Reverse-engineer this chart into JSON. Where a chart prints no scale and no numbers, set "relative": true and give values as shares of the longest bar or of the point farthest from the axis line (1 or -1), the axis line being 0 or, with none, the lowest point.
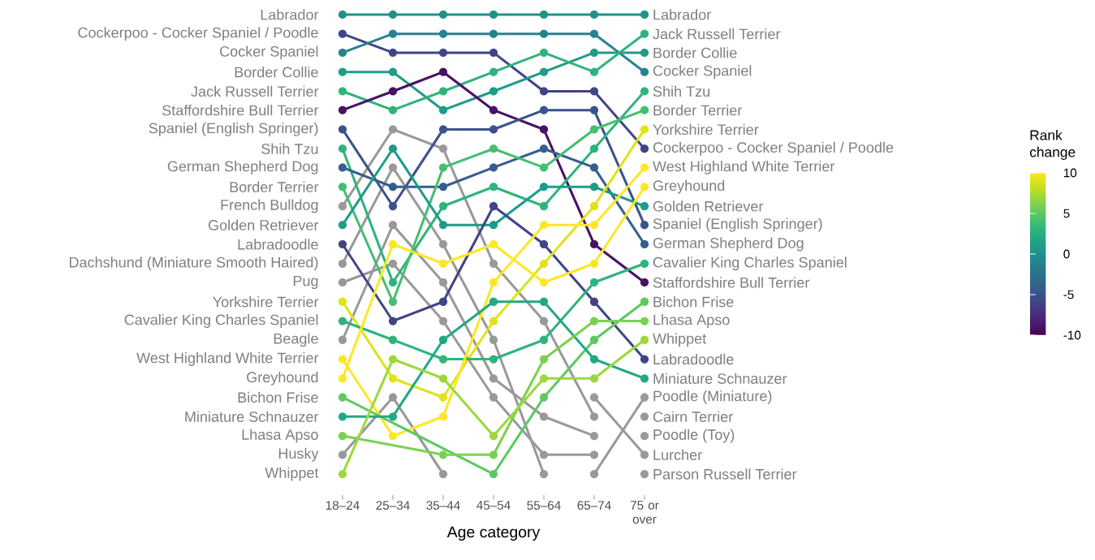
{
  "chart_data": {
    "type": "line",
    "relative": true,
    "xlabel": "Age category",
    "clabel": "Rank change",
    "marker": "circle",
    "line_style": "solid",
    "categories": [
      "18–24",
      "25–34",
      "35–44",
      "45–54",
      "55–64",
      "65–74",
      "75 or over"
    ],
    "clim": [
      -10,
      10
    ],
    "cticks": [
      -10,
      -5,
      0,
      5,
      10
    ],
    "series": [
      {
        "name": "French Bulldog",
        "color": "#999999",
        "values": [
          0.583,
          0.75,
          0.708,
          0.458,
          0.333,
          0.125,
          null
        ]
      },
      {
        "name": "Dachshund (Miniature Smooth Haired)",
        "color": "#999999",
        "values": [
          0.458,
          0.667,
          0.5,
          0.292,
          0,
          null,
          null
        ]
      },
      {
        "name": "Pug",
        "color": "#999999",
        "values": [
          0.417,
          0.458,
          0.333,
          0.167,
          0.042,
          0.042,
          null
        ]
      },
      {
        "name": "Beagle",
        "color": "#999999",
        "values": [
          0.292,
          0.542,
          0.417,
          0.208,
          0.125,
          0.083,
          null
        ]
      },
      {
        "name": "Husky",
        "color": "#999999",
        "values": [
          0.042,
          0.167,
          0,
          null,
          null,
          null,
          null
        ]
      },
      {
        "name": "Poodle (Miniature)",
        "color": "#999999",
        "values": [
          null,
          null,
          null,
          null,
          null,
          0,
          0.167
        ]
      },
      {
        "name": "Cairn Terrier",
        "color": "#999999",
        "values": [
          null,
          null,
          null,
          null,
          null,
          null,
          0.125
        ]
      },
      {
        "name": "Poodle (Toy)",
        "color": "#999999",
        "values": [
          null,
          null,
          null,
          null,
          null,
          null,
          0.083
        ]
      },
      {
        "name": "Lurcher",
        "color": "#999999",
        "values": [
          null,
          null,
          null,
          null,
          null,
          0.167,
          0.042
        ]
      },
      {
        "name": "Parson Russell Terrier",
        "color": "#999999",
        "values": [
          null,
          null,
          null,
          null,
          null,
          null,
          0
        ]
      },
      {
        "name": "Labrador",
        "color": "#21918c",
        "values": [
          1,
          1,
          1,
          1,
          1,
          1,
          1
        ]
      },
      {
        "name": "Cockerpoo - Cocker Spaniel / Poodle",
        "color": "#414487",
        "values": [
          0.958,
          0.917,
          0.917,
          0.917,
          0.833,
          0.833,
          0.708
        ]
      },
      {
        "name": "Cocker Spaniel",
        "color": "#25848e",
        "values": [
          0.917,
          0.958,
          0.958,
          0.958,
          0.958,
          0.958,
          0.875
        ]
      },
      {
        "name": "Border Collie",
        "color": "#1e9c89",
        "values": [
          0.875,
          0.875,
          0.792,
          0.833,
          0.875,
          0.917,
          0.917
        ]
      },
      {
        "name": "Jack Russell Terrier",
        "color": "#2fb47c",
        "values": [
          0.833,
          0.792,
          0.833,
          0.875,
          0.917,
          0.875,
          0.958
        ]
      },
      {
        "name": "Staffordshire Bull Terrier",
        "color": "#471365",
        "values": [
          0.792,
          0.833,
          0.875,
          0.792,
          0.75,
          0.5,
          0.417
        ]
      },
      {
        "name": "Spaniel (English Springer)",
        "color": "#3b528b",
        "values": [
          0.75,
          0.583,
          0.75,
          0.75,
          0.792,
          0.792,
          0.542
        ]
      },
      {
        "name": "Shih Tzu",
        "color": "#2fb47c",
        "values": [
          0.708,
          0.417,
          0.583,
          0.625,
          0.583,
          0.708,
          0.833
        ]
      },
      {
        "name": "German Shepherd Dog",
        "color": "#355f8d",
        "values": [
          0.667,
          0.625,
          0.625,
          0.667,
          0.708,
          0.667,
          0.5
        ]
      },
      {
        "name": "Border Terrier",
        "color": "#44bf70",
        "values": [
          0.625,
          0.375,
          0.667,
          0.708,
          0.667,
          0.75,
          0.792
        ]
      },
      {
        "name": "Golden Retriever",
        "color": "#1e9c89",
        "values": [
          0.542,
          0.708,
          0.542,
          0.542,
          0.625,
          0.625,
          0.583
        ]
      },
      {
        "name": "Labradoodle",
        "color": "#414487",
        "values": [
          0.5,
          0.333,
          0.375,
          0.583,
          0.5,
          0.375,
          0.25
        ]
      },
      {
        "name": "Yorkshire Terrier",
        "color": "#dfe318",
        "values": [
          0.375,
          0.208,
          0.167,
          0.333,
          0.458,
          0.583,
          0.75
        ]
      },
      {
        "name": "Cavalier King Charles Spaniel",
        "color": "#2fb47c",
        "values": [
          0.333,
          0.292,
          0.25,
          0.25,
          0.292,
          0.417,
          0.458
        ]
      },
      {
        "name": "West Highland White Terrier",
        "color": "#fde725",
        "values": [
          0.25,
          0.083,
          0.125,
          0.417,
          0.542,
          0.542,
          0.667
        ]
      },
      {
        "name": "Greyhound",
        "color": "#fde725",
        "values": [
          0.208,
          0.5,
          0.458,
          0.5,
          0.417,
          0.458,
          0.625
        ]
      },
      {
        "name": "Bichon Frise",
        "color": "#5ec962",
        "values": [
          0.167,
          null,
          null,
          0,
          0.167,
          0.292,
          0.375
        ]
      },
      {
        "name": "Miniature Schnauzer",
        "color": "#22a884",
        "values": [
          0.125,
          0.125,
          0.292,
          0.375,
          0.375,
          0.25,
          0.208
        ]
      },
      {
        "name": "Lhasa Apso",
        "color": "#7ad151",
        "values": [
          0.083,
          null,
          0.042,
          0.042,
          0.25,
          0.333,
          0.333
        ]
      },
      {
        "name": "Whippet",
        "color": "#9bd93c",
        "values": [
          0,
          0.25,
          0.208,
          0.083,
          0.208,
          0.208,
          0.292
        ]
      }
    ]
  }
}
